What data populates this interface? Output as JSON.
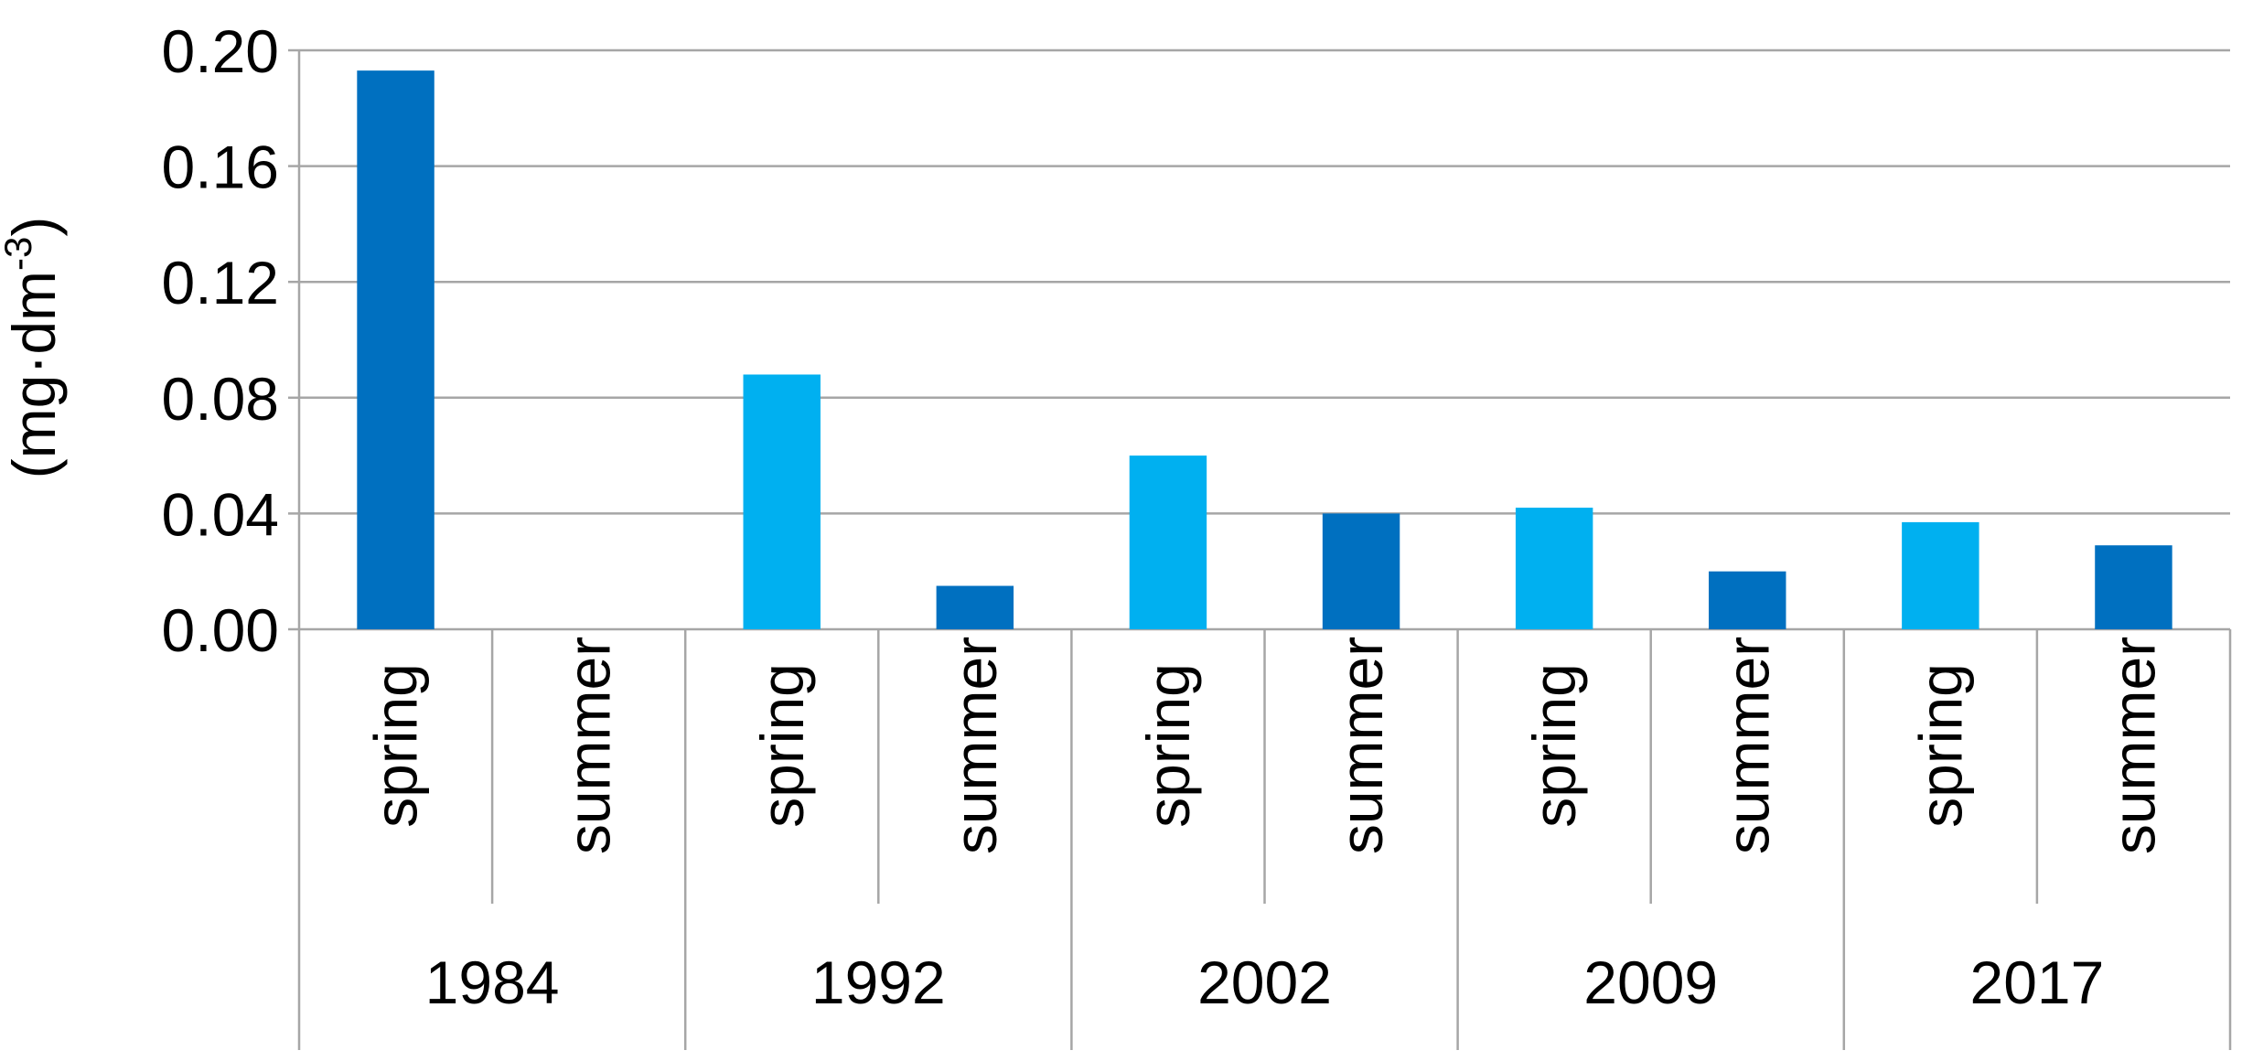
{
  "chart_data": {
    "type": "bar",
    "title": "",
    "xlabel": "",
    "ylabel": "(mg·dm",
    "ylabel_superscript": "-3",
    "ylabel_close": ")",
    "ylim": [
      0,
      0.2
    ],
    "y_ticks": [
      "0.00",
      "0.04",
      "0.08",
      "0.12",
      "0.16",
      "0.20"
    ],
    "y_tick_values": [
      0,
      0.04,
      0.08,
      0.12,
      0.16,
      0.2
    ],
    "grid": true,
    "legend": "none",
    "groups": [
      {
        "year": "1984",
        "bars": [
          {
            "season": "spring",
            "value": 0.193,
            "color": "#0070C0"
          },
          {
            "season": "summer",
            "value": null,
            "color": "#00B0F0"
          }
        ]
      },
      {
        "year": "1992",
        "bars": [
          {
            "season": "spring",
            "value": 0.088,
            "color": "#00B0F0"
          },
          {
            "season": "summer",
            "value": 0.015,
            "color": "#0070C0"
          }
        ]
      },
      {
        "year": "2002",
        "bars": [
          {
            "season": "spring",
            "value": 0.06,
            "color": "#00B0F0"
          },
          {
            "season": "summer",
            "value": 0.04,
            "color": "#0070C0"
          }
        ]
      },
      {
        "year": "2009",
        "bars": [
          {
            "season": "spring",
            "value": 0.042,
            "color": "#00B0F0"
          },
          {
            "season": "summer",
            "value": 0.02,
            "color": "#0070C0"
          }
        ]
      },
      {
        "year": "2017",
        "bars": [
          {
            "season": "spring",
            "value": 0.037,
            "color": "#00B0F0"
          },
          {
            "season": "summer",
            "value": 0.029,
            "color": "#0070C0"
          }
        ]
      }
    ],
    "colors": {
      "dark_blue": "#0070C0",
      "light_blue": "#00B0F0",
      "grid": "#A6A6A6",
      "axis": "#A6A6A6"
    }
  }
}
